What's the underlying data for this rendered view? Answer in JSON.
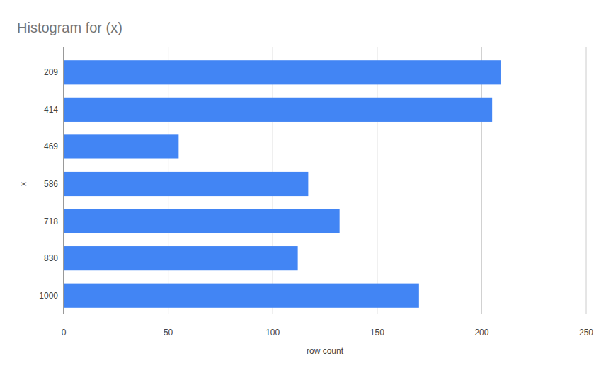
{
  "chart_data": {
    "type": "bar",
    "title": "Histogram for (x)",
    "x_axis_label": "row count",
    "y_axis_label": "x",
    "categories": [
      "209",
      "414",
      "469",
      "586",
      "718",
      "830",
      "1000"
    ],
    "values": [
      209,
      205,
      55,
      117,
      132,
      112,
      170
    ],
    "color": "#4285f4",
    "orientation": "horizontal",
    "xlim": [
      0,
      250
    ],
    "xticks": [
      0,
      50,
      100,
      150,
      200,
      250
    ],
    "grid": true
  }
}
